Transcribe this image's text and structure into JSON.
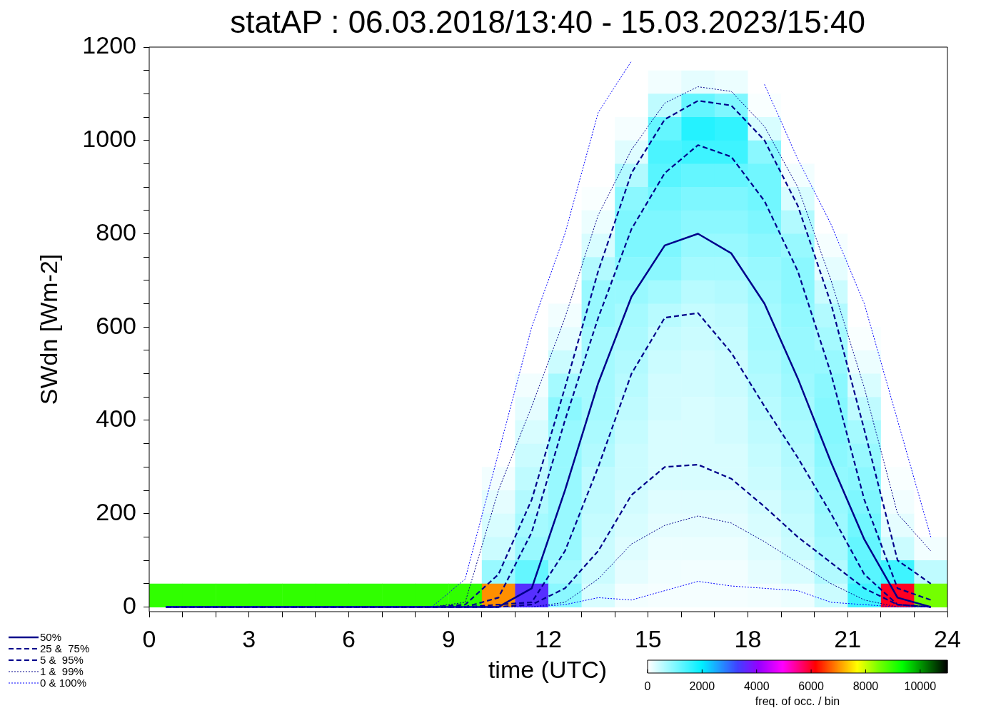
{
  "chart_data": {
    "type": "heatmap",
    "title": "statAP : 06.03.2018/13:40 - 15.03.2023/15:40",
    "xlabel": "time (UTC)",
    "ylabel": "SWdn [Wm-2]",
    "clabel": "freq. of occ. / bin",
    "xlim": [
      0,
      24
    ],
    "ylim": [
      -10,
      1200
    ],
    "xticks": [
      0,
      {
        "value": 1,
        "label": null
      },
      {
        "value": 2,
        "label": null
      },
      3,
      {
        "value": 4,
        "label": null
      },
      {
        "value": 5,
        "label": null
      },
      6,
      {
        "value": 7,
        "label": null
      },
      {
        "value": 8,
        "label": null
      },
      9,
      {
        "value": 10,
        "label": null
      },
      {
        "value": 11,
        "label": null
      },
      12,
      {
        "value": 13,
        "label": null
      },
      {
        "value": 14,
        "label": null
      },
      15,
      {
        "value": 16,
        "label": null
      },
      {
        "value": 17,
        "label": null
      },
      18,
      {
        "value": 19,
        "label": null
      },
      {
        "value": 20,
        "label": null
      },
      21,
      {
        "value": 22,
        "label": null
      },
      {
        "value": 23,
        "label": null
      },
      24
    ],
    "yticks": [
      0,
      {
        "value": 50,
        "label": null
      },
      {
        "value": 100,
        "label": null
      },
      {
        "value": 150,
        "label": null
      },
      200,
      {
        "value": 250,
        "label": null
      },
      {
        "value": 300,
        "label": null
      },
      {
        "value": 350,
        "label": null
      },
      400,
      {
        "value": 450,
        "label": null
      },
      {
        "value": 500,
        "label": null
      },
      {
        "value": 550,
        "label": null
      },
      600,
      {
        "value": 650,
        "label": null
      },
      {
        "value": 700,
        "label": null
      },
      {
        "value": 750,
        "label": null
      },
      800,
      {
        "value": 850,
        "label": null
      },
      {
        "value": 900,
        "label": null
      },
      {
        "value": 950,
        "label": null
      },
      1000,
      {
        "value": 1050,
        "label": null
      },
      {
        "value": 1100,
        "label": null
      },
      {
        "value": 1150,
        "label": null
      },
      1200
    ],
    "clim": [
      0,
      11000
    ],
    "cticks": [
      0,
      2000,
      4000,
      6000,
      8000,
      10000
    ],
    "grid": false,
    "legend": "bottom left",
    "x": [
      0.5,
      1.5,
      2.5,
      3.5,
      4.5,
      5.5,
      6.5,
      7.5,
      8.5,
      9.5,
      10.5,
      11.5,
      12.5,
      13.5,
      14.5,
      15.5,
      16.5,
      17.5,
      18.5,
      19.5,
      20.5,
      21.5,
      22.5,
      23.5
    ],
    "y": [
      1175,
      1125,
      1075,
      1025,
      975,
      925,
      875,
      825,
      775,
      725,
      675,
      625,
      575,
      525,
      475,
      425,
      375,
      325,
      275,
      225,
      175,
      125,
      75,
      25
    ],
    "cells": [
      [
        0,
        0,
        0,
        0,
        0,
        0,
        0,
        0,
        0,
        0,
        0,
        0,
        0,
        0,
        0,
        0,
        0,
        0,
        0,
        0,
        0,
        0,
        0,
        0
      ],
      [
        0,
        0,
        0,
        0,
        0,
        0,
        0,
        0,
        0,
        0,
        0,
        0,
        0,
        0,
        0,
        100,
        200,
        150,
        0,
        0,
        0,
        0,
        0,
        0
      ],
      [
        0,
        0,
        0,
        0,
        0,
        0,
        0,
        0,
        0,
        0,
        0,
        0,
        0,
        0,
        0,
        500,
        1200,
        1000,
        50,
        0,
        0,
        0,
        0,
        0
      ],
      [
        0,
        0,
        0,
        0,
        0,
        0,
        0,
        0,
        0,
        0,
        0,
        0,
        0,
        0,
        80,
        1200,
        1700,
        1600,
        300,
        0,
        0,
        0,
        0,
        0
      ],
      [
        0,
        0,
        0,
        0,
        0,
        0,
        0,
        0,
        0,
        0,
        0,
        0,
        0,
        0,
        250,
        1400,
        1500,
        1500,
        900,
        0,
        0,
        0,
        0,
        0
      ],
      [
        0,
        0,
        0,
        0,
        0,
        0,
        0,
        0,
        0,
        0,
        0,
        0,
        0,
        0,
        600,
        1300,
        1200,
        1200,
        1100,
        100,
        0,
        0,
        0,
        0
      ],
      [
        0,
        0,
        0,
        0,
        0,
        0,
        0,
        0,
        0,
        0,
        0,
        0,
        0,
        50,
        900,
        1100,
        1000,
        1000,
        1100,
        300,
        0,
        0,
        0,
        0
      ],
      [
        0,
        0,
        0,
        0,
        0,
        0,
        0,
        0,
        0,
        0,
        0,
        0,
        0,
        150,
        1000,
        1000,
        900,
        900,
        1000,
        600,
        0,
        0,
        0,
        0
      ],
      [
        0,
        0,
        0,
        0,
        0,
        0,
        0,
        0,
        0,
        0,
        0,
        0,
        0,
        300,
        1000,
        1000,
        800,
        800,
        900,
        800,
        80,
        0,
        0,
        0
      ],
      [
        0,
        0,
        0,
        0,
        0,
        0,
        0,
        0,
        0,
        0,
        0,
        0,
        0,
        600,
        900,
        900,
        700,
        700,
        800,
        900,
        200,
        0,
        0,
        0
      ],
      [
        0,
        0,
        0,
        0,
        0,
        0,
        0,
        0,
        0,
        0,
        0,
        0,
        0,
        800,
        800,
        700,
        550,
        600,
        750,
        900,
        400,
        0,
        0,
        0
      ],
      [
        0,
        0,
        0,
        0,
        0,
        0,
        0,
        0,
        0,
        0,
        0,
        0,
        100,
        800,
        700,
        550,
        450,
        500,
        700,
        850,
        600,
        0,
        0,
        0
      ],
      [
        0,
        0,
        0,
        0,
        0,
        0,
        0,
        0,
        0,
        0,
        0,
        0,
        200,
        700,
        650,
        450,
        400,
        450,
        700,
        800,
        700,
        50,
        0,
        0
      ],
      [
        0,
        0,
        0,
        0,
        0,
        0,
        0,
        0,
        0,
        0,
        0,
        0,
        400,
        700,
        600,
        400,
        350,
        400,
        650,
        800,
        800,
        150,
        0,
        0
      ],
      [
        0,
        0,
        0,
        0,
        0,
        0,
        0,
        0,
        0,
        0,
        0,
        100,
        700,
        700,
        550,
        350,
        350,
        400,
        600,
        750,
        900,
        300,
        0,
        0
      ],
      [
        0,
        0,
        0,
        0,
        0,
        0,
        0,
        0,
        0,
        0,
        0,
        200,
        900,
        700,
        500,
        350,
        300,
        350,
        550,
        700,
        950,
        500,
        0,
        0
      ],
      [
        0,
        0,
        0,
        0,
        0,
        0,
        0,
        0,
        0,
        0,
        0,
        300,
        800,
        650,
        450,
        300,
        300,
        350,
        500,
        650,
        950,
        700,
        0,
        0
      ],
      [
        0,
        0,
        0,
        0,
        0,
        0,
        0,
        0,
        0,
        0,
        0,
        400,
        800,
        600,
        400,
        300,
        300,
        300,
        450,
        600,
        900,
        800,
        0,
        0
      ],
      [
        0,
        0,
        0,
        0,
        0,
        0,
        0,
        0,
        0,
        0,
        100,
        500,
        800,
        500,
        400,
        300,
        300,
        300,
        400,
        550,
        850,
        900,
        50,
        0
      ],
      [
        0,
        0,
        0,
        0,
        0,
        0,
        0,
        0,
        0,
        0,
        200,
        600,
        800,
        500,
        350,
        250,
        250,
        250,
        350,
        500,
        800,
        1000,
        100,
        0
      ],
      [
        0,
        0,
        0,
        0,
        0,
        0,
        0,
        0,
        0,
        0,
        300,
        700,
        800,
        450,
        300,
        200,
        200,
        200,
        300,
        450,
        750,
        1100,
        200,
        0
      ],
      [
        0,
        0,
        0,
        0,
        0,
        0,
        0,
        0,
        0,
        0,
        400,
        800,
        800,
        400,
        250,
        150,
        150,
        150,
        250,
        400,
        700,
        1200,
        400,
        100
      ],
      [
        0,
        0,
        0,
        0,
        0,
        0,
        0,
        0,
        0,
        0,
        800,
        1200,
        700,
        400,
        200,
        120,
        100,
        100,
        200,
        300,
        600,
        1300,
        1500,
        500
      ],
      [
        9000,
        9000,
        9000,
        9000,
        9000,
        9000,
        9000,
        9000,
        9000,
        9000,
        7000,
        3500,
        900,
        300,
        100,
        80,
        80,
        80,
        100,
        150,
        400,
        1500,
        6000,
        8500
      ]
    ],
    "series": [
      {
        "name": "50%",
        "type": "line",
        "color": "#00008b",
        "line_style": "solid",
        "values": [
          0,
          0,
          0,
          0,
          0,
          0,
          0,
          0,
          0,
          0,
          0,
          40,
          250,
          480,
          665,
          775,
          800,
          758,
          650,
          490,
          310,
          145,
          20,
          0
        ]
      },
      {
        "name": "25 &  75%",
        "type": "line",
        "color": "#00008b",
        "line_style": "dashed",
        "values": [
          0,
          0,
          0,
          0,
          0,
          0,
          0,
          0,
          0,
          0,
          5,
          10,
          120,
          300,
          500,
          620,
          630,
          545,
          430,
          320,
          200,
          70,
          5,
          0
        ]
      },
      {
        "type": "line",
        "color": "#00008b",
        "line_style": "dashed",
        "values": [
          0,
          0,
          0,
          0,
          0,
          0,
          0,
          0,
          0,
          0,
          20,
          160,
          400,
          620,
          810,
          930,
          990,
          965,
          870,
          720,
          500,
          230,
          40,
          15
        ]
      },
      {
        "name": "5 &  95%",
        "type": "line",
        "color": "#00008b",
        "line_style": "dashed",
        "values": [
          0,
          0,
          0,
          0,
          0,
          0,
          0,
          0,
          0,
          0,
          0,
          5,
          40,
          120,
          240,
          300,
          305,
          275,
          215,
          150,
          95,
          40,
          5,
          0
        ]
      },
      {
        "type": "line",
        "color": "#00008b",
        "line_style": "dashed",
        "values": [
          0,
          0,
          0,
          0,
          0,
          0,
          0,
          0,
          0,
          5,
          70,
          230,
          470,
          720,
          930,
          1045,
          1085,
          1075,
          1000,
          860,
          650,
          380,
          100,
          50
        ]
      },
      {
        "name": "1 &  99%",
        "type": "line",
        "color": "#00008b",
        "line_style": "dotted",
        "values": [
          0,
          0,
          0,
          0,
          0,
          0,
          0,
          0,
          0,
          0,
          0,
          0,
          10,
          60,
          135,
          175,
          195,
          180,
          140,
          95,
          50,
          15,
          0,
          0
        ]
      },
      {
        "type": "line",
        "color": "#00008b",
        "line_style": "dotted",
        "values": [
          0,
          0,
          0,
          0,
          0,
          0,
          0,
          0,
          0,
          10,
          250,
          430,
          620,
          840,
          980,
          1080,
          1115,
          1105,
          1030,
          900,
          700,
          470,
          200,
          120
        ]
      },
      {
        "name": "0 & 100%",
        "type": "line",
        "color": "#0000ff",
        "line_style": "dotted",
        "values": [
          0,
          0,
          0,
          0,
          0,
          0,
          0,
          0,
          0,
          0,
          0,
          0,
          5,
          20,
          15,
          35,
          55,
          45,
          40,
          35,
          10,
          5,
          0,
          0
        ]
      },
      {
        "type": "line",
        "color": "#0000ff",
        "line_style": "dotted",
        "values": [
          0,
          0,
          0,
          0,
          0,
          0,
          0,
          0,
          0,
          60,
          330,
          600,
          800,
          1060,
          1170,
          null,
          null,
          null,
          1120,
          960,
          820,
          650,
          400,
          150
        ]
      }
    ]
  }
}
